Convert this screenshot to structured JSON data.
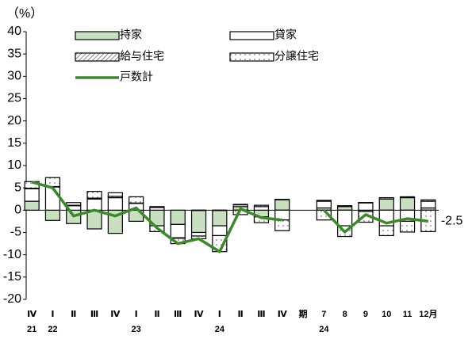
{
  "chart_data": {
    "type": "bar-line",
    "y_unit": "（%）",
    "categories": [
      "Ⅳ",
      "Ⅰ",
      "Ⅱ",
      "Ⅲ",
      "Ⅳ",
      "Ⅰ",
      "Ⅱ",
      "Ⅲ",
      "Ⅳ",
      "Ⅰ",
      "Ⅱ",
      "Ⅲ",
      "Ⅳ",
      "期",
      "7",
      "8",
      "9",
      "10",
      "11",
      "12月"
    ],
    "year_labels": [
      "21",
      "22",
      null,
      null,
      null,
      "23",
      null,
      null,
      null,
      "24",
      null,
      null,
      null,
      null,
      "24",
      null,
      null,
      null,
      null,
      null
    ],
    "ylim": [
      -20,
      40
    ],
    "yticks": [
      -20,
      -15,
      -10,
      -5,
      0,
      5,
      10,
      15,
      20,
      25,
      30,
      35,
      40
    ],
    "series": [
      {
        "name": "持家",
        "type": "bar",
        "color": "#c8e0c0",
        "pattern": "solid",
        "values": [
          2.0,
          -2.3,
          -3.0,
          -4.2,
          -5.2,
          -2.5,
          -3.5,
          -3.2,
          -5.0,
          -3.5,
          0.8,
          -1.5,
          2.4,
          null,
          0.5,
          0.8,
          -0.3,
          2.5,
          2.8,
          0.5
        ]
      },
      {
        "name": "貸家",
        "type": "bar",
        "color": "#ffffff",
        "pattern": "none",
        "values": [
          2.8,
          5.2,
          1.0,
          2.5,
          2.8,
          1.5,
          0.6,
          -3.0,
          -0.8,
          -2.2,
          0.4,
          0.8,
          -2.2,
          null,
          1.5,
          -3.5,
          1.7,
          -3.5,
          -2.5,
          1.5
        ]
      },
      {
        "name": "給与住宅",
        "type": "bar",
        "color": "#ffffff",
        "pattern": "hatch",
        "values": [
          0.1,
          0.1,
          0.1,
          0.2,
          0.3,
          0.1,
          0.2,
          -0.1,
          0.0,
          0.0,
          0.1,
          0.3,
          0.0,
          null,
          0.2,
          0.2,
          0.0,
          0.3,
          0.2,
          0.3
        ]
      },
      {
        "name": "分譲住宅",
        "type": "bar",
        "color": "#ffffff",
        "pattern": "dots",
        "values": [
          1.5,
          2.0,
          0.6,
          1.5,
          0.8,
          1.4,
          -1.3,
          -1.2,
          -0.6,
          -3.6,
          -1.0,
          -1.3,
          -2.4,
          null,
          -2.2,
          -2.4,
          -2.4,
          -2.2,
          -2.4,
          -4.8
        ]
      },
      {
        "name": "戸数計",
        "type": "line",
        "color": "#3a8a2a",
        "values": [
          6.3,
          5.0,
          -1.3,
          0.0,
          -1.3,
          0.5,
          -4.0,
          -7.5,
          -6.4,
          -9.3,
          0.3,
          -1.7,
          -2.2,
          null,
          0.0,
          -4.9,
          -1.0,
          -2.9,
          -1.9,
          -2.5
        ],
        "value_labels": [
          null,
          null,
          null,
          null,
          null,
          null,
          null,
          null,
          null,
          null,
          null,
          null,
          null,
          null,
          null,
          null,
          null,
          null,
          null,
          "-2.5"
        ]
      }
    ]
  }
}
